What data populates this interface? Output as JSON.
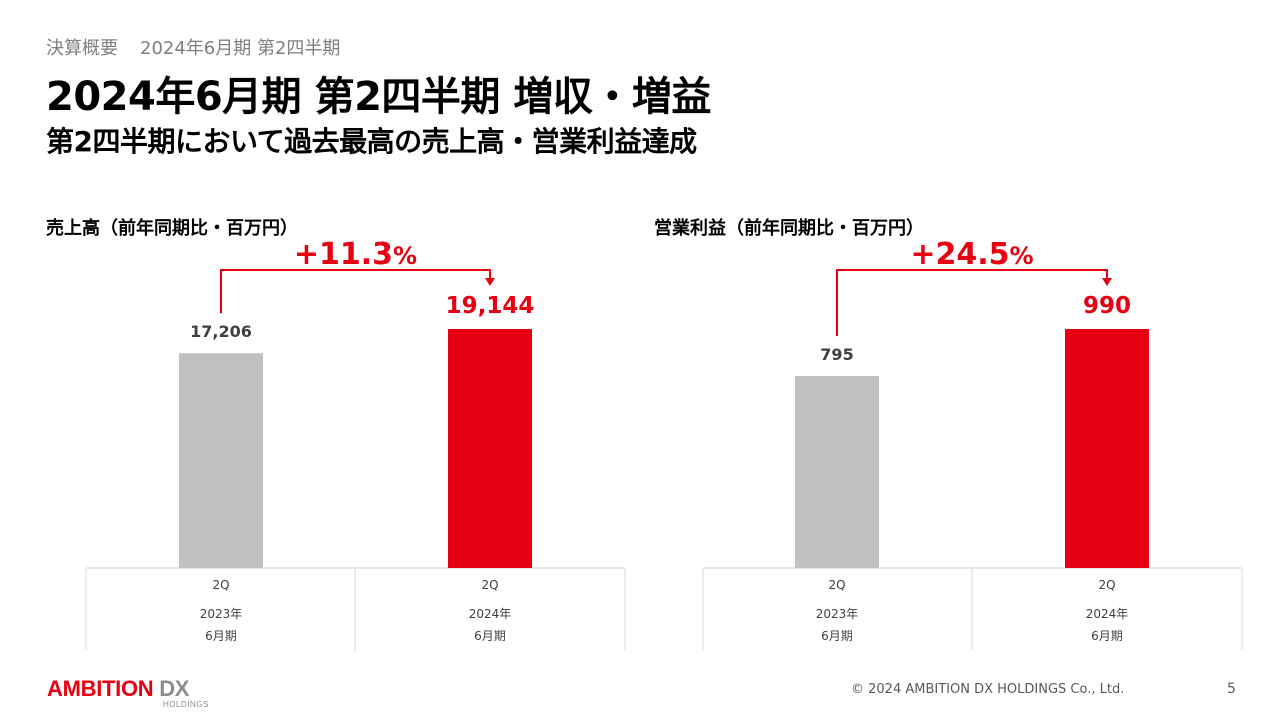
{
  "header": {
    "breadcrumb_section": "決算概要",
    "breadcrumb_period": "2024年6月期 第2四半期",
    "title": "2024年6月期 第2四半期 増収・増益",
    "subtitle": "第2四半期において過去最高の売上高・営業利益達成"
  },
  "colors": {
    "accent": "#e60012",
    "prior_bar": "#c0c0c0",
    "text_gray": "#404040"
  },
  "chart_data": [
    {
      "type": "bar",
      "title": "売上高（前年同期比・百万円）",
      "categories": [
        {
          "quarter": "2Q",
          "year": "2023年",
          "period": "6月期"
        },
        {
          "quarter": "2Q",
          "year": "2024年",
          "period": "6月期"
        }
      ],
      "values": [
        17206,
        19144
      ],
      "value_labels": [
        "17,206",
        "19,144"
      ],
      "growth_label": "+11.3",
      "growth_unit": "%",
      "bar_colors": [
        "#c0c0c0",
        "#e60012"
      ],
      "ylim": [
        0,
        20500
      ],
      "grid": false
    },
    {
      "type": "bar",
      "title": "営業利益（前年同期比・百万円）",
      "categories": [
        {
          "quarter": "2Q",
          "year": "2023年",
          "period": "6月期"
        },
        {
          "quarter": "2Q",
          "year": "2024年",
          "period": "6月期"
        }
      ],
      "values": [
        795,
        990
      ],
      "value_labels": [
        "795",
        "990"
      ],
      "growth_label": "+24.5",
      "growth_unit": "%",
      "bar_colors": [
        "#c0c0c0",
        "#e60012"
      ],
      "ylim": [
        0,
        1000
      ],
      "grid": false
    }
  ],
  "footer": {
    "logo_main": "AMBITION",
    "logo_dx": "DX",
    "logo_sub": "HOLDINGS",
    "copyright": "© 2024 AMBITION DX HOLDINGS Co., Ltd.",
    "page_number": "5"
  }
}
